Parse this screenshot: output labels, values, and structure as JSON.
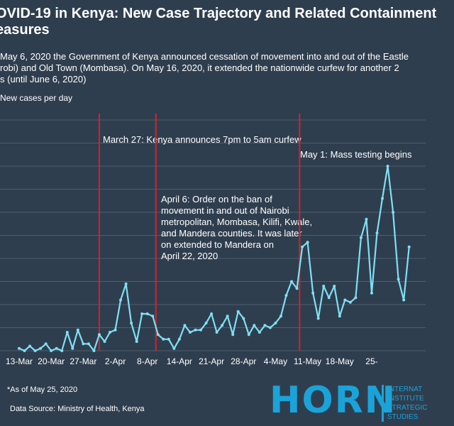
{
  "title": "OVID-19 in Kenya: New Case Trajectory and Related Containment\neasures",
  "subtitle": "May 6, 2020 the Government of Kenya announced cessation of movement into and out of the Eastle\nrobi) and Old Town (Mombasa). On May 16, 2020,  it extended the nationwide curfew for another 2\ns (until June 6, 2020)",
  "footnote": "*As of May 25, 2020",
  "source": "Data Source: Ministry of Health, Kenya",
  "logo": {
    "word": "HORN",
    "lines": [
      "INTERNAT",
      "INSTITUTE",
      "STRATEGIC",
      "STUDIES"
    ]
  },
  "colors": {
    "background": "#2f3e4e",
    "line": "#7fe0f5",
    "event_line": "#d0232a",
    "grid": "#4f5e6e",
    "brand": "#1aa3d9"
  },
  "chart_data": {
    "type": "line",
    "title": "OVID-19 in Kenya: New Case Trajectory and Related Containment easures",
    "xlabel": "",
    "ylabel": "New cases per day",
    "ylim": [
      0,
      100
    ],
    "y_gridlines": [
      0,
      10,
      20,
      30,
      40,
      50,
      60,
      70,
      80,
      90,
      100
    ],
    "x_tick_labels": [
      "13-Mar",
      "20-Mar",
      "27-Mar",
      "2-Apr",
      "8-Apr",
      "14-Apr",
      "21-Apr",
      "28-Apr",
      "4-May",
      "11-May",
      "18-May",
      "25-"
    ],
    "series": [
      {
        "values": [
          1,
          0,
          2,
          0,
          1,
          3,
          0,
          1,
          0,
          8,
          1,
          9,
          3,
          3,
          0,
          7,
          4,
          8,
          9,
          22,
          29,
          12,
          4,
          16,
          16,
          15,
          7,
          5,
          5,
          1,
          5,
          11,
          8,
          9,
          9,
          12,
          16,
          8,
          11,
          15,
          7,
          17,
          14,
          7,
          11,
          8,
          11,
          10,
          12,
          15,
          24,
          30,
          27,
          45,
          47,
          25,
          14,
          28,
          23,
          28,
          15,
          22,
          21,
          23,
          49,
          57,
          25,
          51,
          66,
          80,
          60,
          31,
          22,
          45
        ]
      }
    ],
    "events": [
      {
        "label": "March 27: Kenya announces 7pm to 5am curfew"
      },
      {
        "label": "April 6: Order on the ban of\nmovement in and out of Nairobi\nmetropolitan, Mombasa, Kilifi, Kwale,\nand Mandera counties. It was later\non extended to Mandera on\nApril 22, 2020"
      },
      {
        "label": "May 1: Mass testing begins"
      }
    ]
  }
}
